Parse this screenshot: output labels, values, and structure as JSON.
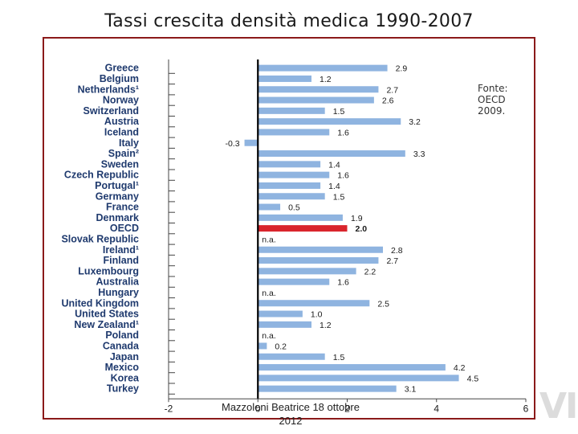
{
  "slide": {
    "title": "Tassi crescita densità medica 1990-2007",
    "source": "Fonte: OECD 2009.",
    "footer_line1": "Mazzoleni Beatrice 18 ottobre",
    "footer_line2": "2012",
    "logo": "VI"
  },
  "chart_data": {
    "type": "bar",
    "orientation": "horizontal",
    "title": "Tassi crescita densità medica 1990-2007",
    "xlim": [
      -2,
      6
    ],
    "xticks": [
      -2,
      0,
      2,
      4,
      6
    ],
    "categories": [
      "Greece",
      "Belgium",
      "Netherlands¹",
      "Norway",
      "Switzerland",
      "Austria",
      "Iceland",
      "Italy",
      "Spain²",
      "Sweden",
      "Czech Republic",
      "Portugal¹",
      "Germany",
      "France",
      "Denmark",
      "OECD",
      "Slovak Republic",
      "Ireland¹",
      "Finland",
      "Luxembourg",
      "Australia",
      "Hungary",
      "United Kingdom",
      "United States",
      "New Zealand¹",
      "Poland",
      "Canada",
      "Japan",
      "Mexico",
      "Korea",
      "Turkey"
    ],
    "values": [
      2.9,
      1.2,
      2.7,
      2.6,
      1.5,
      3.2,
      1.6,
      -0.3,
      3.3,
      1.4,
      1.6,
      1.4,
      1.5,
      0.5,
      1.9,
      2.0,
      null,
      2.8,
      2.7,
      2.2,
      1.6,
      null,
      2.5,
      1.0,
      1.2,
      null,
      0.2,
      1.5,
      4.2,
      4.5,
      3.1
    ],
    "labels": [
      "2.9",
      "1.2",
      "2.7",
      "2.6",
      "1.5",
      "3.2",
      "1.6",
      "-0.3",
      "3.3",
      "1.4",
      "1.6",
      "1.4",
      "1.5",
      "0.5",
      "1.9",
      "2.0",
      "n.a.",
      "2.8",
      "2.7",
      "2.2",
      "1.6",
      "n.a.",
      "2.5",
      "1.0",
      "1.2",
      "n.a.",
      "0.2",
      "1.5",
      "4.2",
      "4.5",
      "3.1"
    ],
    "highlight": "OECD",
    "colors": {
      "bar": "#8fb4e0",
      "highlight": "#d9242c",
      "axis": "#000000"
    }
  }
}
